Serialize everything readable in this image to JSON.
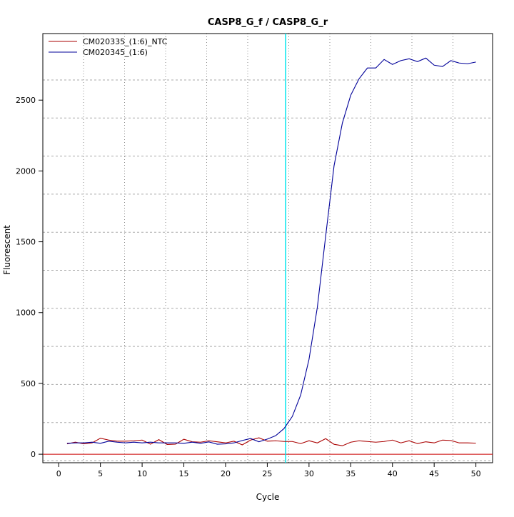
{
  "chart_data": {
    "type": "line",
    "title": "CASP8_G_f / CASP8_G_r",
    "xlabel": "Cycle",
    "ylabel": "Fluorescent",
    "xlim": [
      -1.9,
      52
    ],
    "ylim": [
      -60,
      2970
    ],
    "xticks": [
      0,
      5,
      10,
      15,
      20,
      25,
      30,
      35,
      40,
      45,
      50
    ],
    "yticks": [
      0,
      500,
      1000,
      1500,
      2000,
      2500
    ],
    "grid": true,
    "legend_position": "top-left",
    "threshold_cycle": 27.2,
    "threshold_color": "#00e5ee",
    "baseline_value": 0,
    "baseline_color": "#cc0000",
    "x": [
      1,
      2,
      3,
      4,
      5,
      6,
      7,
      8,
      9,
      10,
      11,
      12,
      13,
      14,
      15,
      16,
      17,
      18,
      19,
      20,
      21,
      22,
      23,
      24,
      25,
      26,
      27,
      28,
      29,
      30,
      31,
      32,
      33,
      34,
      35,
      36,
      37,
      38,
      39,
      40,
      41,
      42,
      43,
      44,
      45,
      46,
      47,
      48,
      49,
      50
    ],
    "series": [
      {
        "name": "CM020335_(1:6)_NTC",
        "color": "#aa0000",
        "values": [
          73,
          85,
          73,
          80,
          113,
          100,
          92,
          92,
          95,
          100,
          71,
          103,
          69,
          71,
          106,
          88,
          85,
          95,
          88,
          80,
          92,
          66,
          100,
          116,
          92,
          95,
          90,
          90,
          75,
          95,
          80,
          110,
          70,
          60,
          85,
          95,
          90,
          85,
          90,
          100,
          80,
          95,
          75,
          88,
          80,
          100,
          97,
          80,
          80,
          78
        ]
      },
      {
        "name": "CM020345_(1:6)",
        "color": "#000099",
        "values": [
          77,
          80,
          80,
          85,
          77,
          92,
          85,
          80,
          85,
          80,
          85,
          80,
          80,
          80,
          77,
          85,
          77,
          87,
          71,
          73,
          80,
          97,
          111,
          88,
          107,
          131,
          181,
          267,
          418,
          670,
          1038,
          1542,
          2036,
          2339,
          2535,
          2651,
          2727,
          2727,
          2787,
          2752,
          2779,
          2792,
          2772,
          2797,
          2747,
          2737,
          2779,
          2762,
          2757,
          2769
        ]
      }
    ]
  }
}
